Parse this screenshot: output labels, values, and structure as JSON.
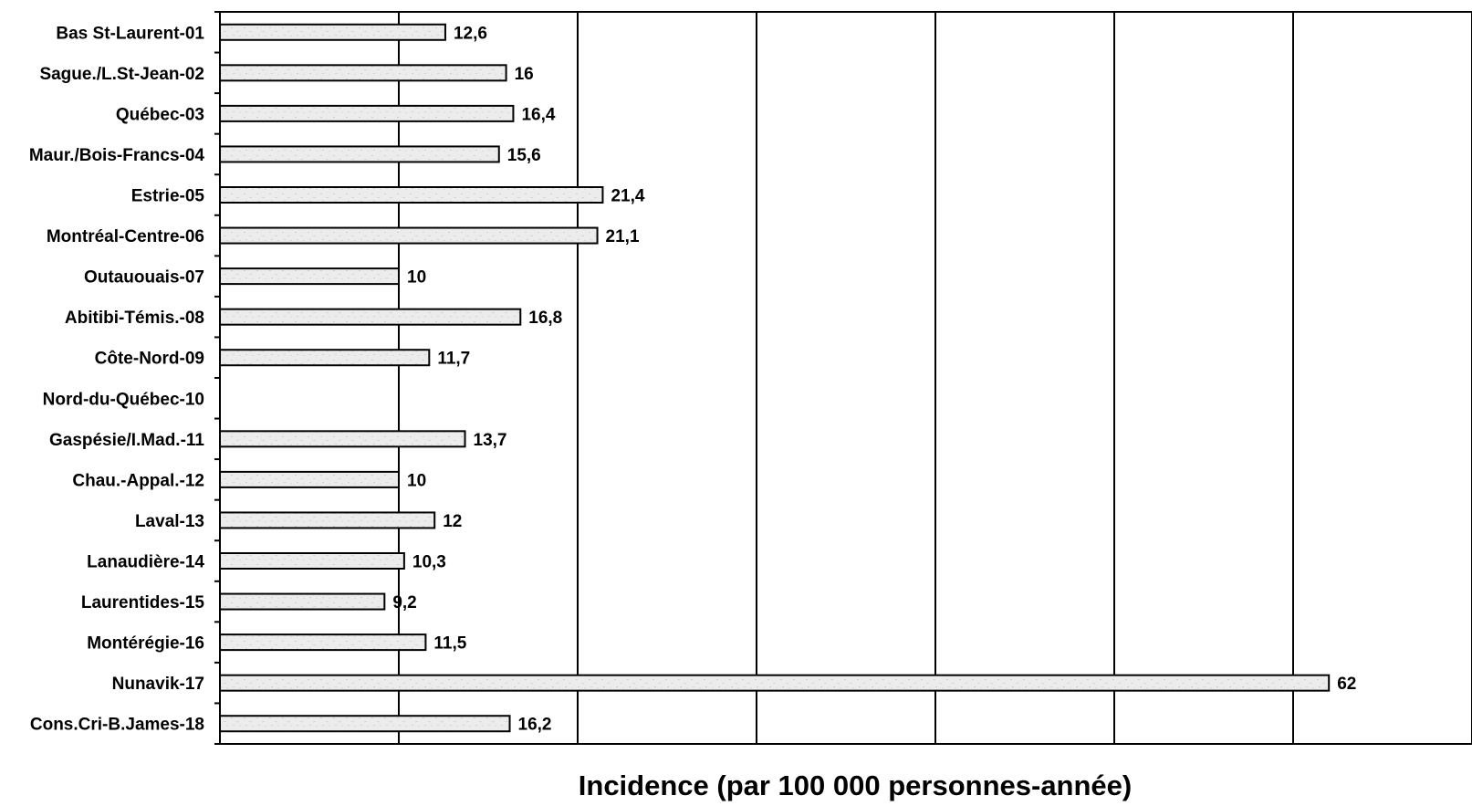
{
  "chart_data": {
    "type": "bar",
    "orientation": "horizontal",
    "categories": [
      "Bas St-Laurent-01",
      "Sague./L.St-Jean-02",
      "Québec-03",
      "Maur./Bois-Francs-04",
      "Estrie-05",
      "Montréal-Centre-06",
      "Outauouais-07",
      "Abitibi-Témis.-08",
      "Côte-Nord-09",
      "Nord-du-Québec-10",
      "Gaspésie/I.Mad.-11",
      "Chau.-Appal.-12",
      "Laval-13",
      "Lanaudière-14",
      "Laurentides-15",
      "Montérégie-16",
      "Nunavik-17",
      "Cons.Cri-B.James-18"
    ],
    "values": [
      12.6,
      16,
      16.4,
      15.6,
      21.4,
      21.1,
      10,
      16.8,
      11.7,
      null,
      13.7,
      10,
      12,
      10.3,
      9.2,
      11.5,
      62,
      16.2
    ],
    "value_labels": [
      "12,6",
      "16",
      "16,4",
      "15,6",
      "21,4",
      "21,1",
      "10",
      "16,8",
      "11,7",
      "",
      "13,7",
      "10",
      "12",
      "10,3",
      "9,2",
      "11,5",
      "62",
      "16,2"
    ],
    "title": "",
    "xlabel": "Incidence (par 100 000 personnes-année)",
    "ylabel": "",
    "xlim": [
      0,
      70
    ],
    "grid_interval": 10,
    "grid": true,
    "legend": "none",
    "bar_fill": "#ececec",
    "bar_stroke": "#000000"
  }
}
